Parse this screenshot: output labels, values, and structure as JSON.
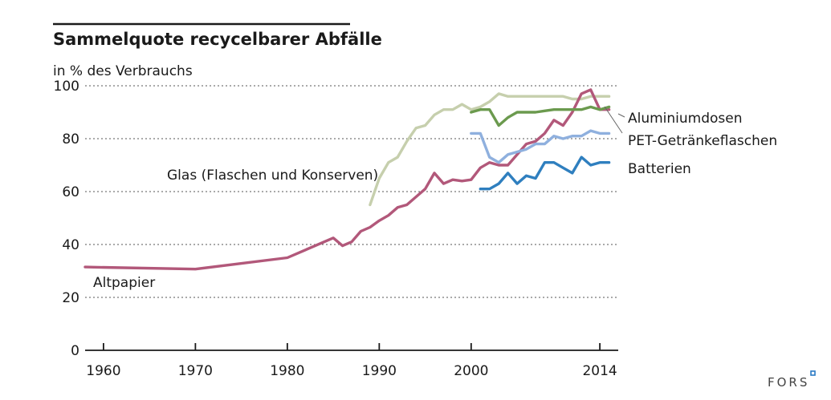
{
  "chart_data": {
    "type": "line",
    "title": "Sammelquote recycelbarer Abfälle",
    "ylabel": "in % des Verbrauchs",
    "xlabel": "",
    "xlim": [
      1958,
      2016
    ],
    "ylim": [
      0,
      100
    ],
    "x_ticks": [
      {
        "value": 1960,
        "label": "1960"
      },
      {
        "value": 1970,
        "label": "1970"
      },
      {
        "value": 1980,
        "label": "1980"
      },
      {
        "value": 1990,
        "label": "1990"
      },
      {
        "value": 2000,
        "label": "2000"
      },
      {
        "value": 2014,
        "label": "2014"
      }
    ],
    "y_ticks": [
      {
        "value": 0,
        "label": "0"
      },
      {
        "value": 20,
        "label": "20"
      },
      {
        "value": 40,
        "label": "40"
      },
      {
        "value": 60,
        "label": "60"
      },
      {
        "value": 80,
        "label": "80"
      },
      {
        "value": 100,
        "label": "100"
      }
    ],
    "grid": "horizontal dashed",
    "series": [
      {
        "name": "Glas (Flaschen und Konserven)",
        "color": "#c6cfad",
        "x": [
          1989,
          1990,
          1991,
          1992,
          1993,
          1994,
          1995,
          1996,
          1997,
          1998,
          1999,
          2000,
          2001,
          2002,
          2003,
          2004,
          2005,
          2006,
          2007,
          2008,
          2009,
          2010,
          2011,
          2012,
          2013,
          2014,
          2015
        ],
        "y": [
          55,
          65,
          71,
          73,
          79,
          84,
          85,
          89,
          91,
          91,
          93,
          91,
          92,
          94,
          97,
          96,
          96,
          96,
          96,
          96,
          96,
          96,
          95,
          95,
          96,
          96,
          96
        ]
      },
      {
        "name": "Altpapier",
        "color": "#b2587a",
        "x": [
          1958,
          1970,
          1980,
          1985,
          1986,
          1987,
          1988,
          1989,
          1990,
          1991,
          1992,
          1993,
          1994,
          1995,
          1996,
          1997,
          1998,
          1999,
          2000,
          2001,
          2002,
          2003,
          2004,
          2005,
          2006,
          2007,
          2008,
          2009,
          2010,
          2011,
          2012,
          2013,
          2014,
          2015
        ],
        "y": [
          31.5,
          30.7,
          35,
          42.5,
          39.5,
          41,
          45,
          46.5,
          49,
          51,
          54,
          55,
          58,
          61,
          67,
          63,
          64.5,
          64,
          64.5,
          69,
          71,
          70,
          70,
          74,
          78,
          79,
          82,
          87,
          85,
          90,
          97,
          98.5,
          91,
          91
        ]
      },
      {
        "name": "Aluminiumdosen",
        "color": "#6b9a4e",
        "x": [
          2000,
          2001,
          2002,
          2003,
          2004,
          2005,
          2006,
          2007,
          2008,
          2009,
          2010,
          2011,
          2012,
          2013,
          2014,
          2015
        ],
        "y": [
          90,
          91,
          91,
          85,
          88,
          90,
          90,
          90,
          90.5,
          91,
          91,
          91,
          91,
          92,
          91,
          92
        ]
      },
      {
        "name": "PET-Getränkeflaschen",
        "color": "#8fb0de",
        "x": [
          2000,
          2001,
          2002,
          2003,
          2004,
          2005,
          2006,
          2007,
          2008,
          2009,
          2010,
          2011,
          2012,
          2013,
          2014,
          2015
        ],
        "y": [
          82,
          82,
          73,
          71,
          74,
          75,
          76,
          78,
          78,
          81,
          80,
          81,
          81,
          83,
          82,
          82
        ]
      },
      {
        "name": "Batterien",
        "color": "#2f7fbf",
        "x": [
          2001,
          2002,
          2003,
          2004,
          2005,
          2006,
          2007,
          2008,
          2009,
          2010,
          2011,
          2012,
          2013,
          2014,
          2015
        ],
        "y": [
          61,
          61,
          63,
          67,
          63,
          66,
          65,
          71,
          71,
          69,
          67,
          73,
          70,
          71,
          71
        ]
      }
    ],
    "annotations": [
      {
        "text": "Glas (Flaschen und Konserven)",
        "series": "Glas (Flaschen und Konserven)"
      },
      {
        "text": "Altpapier",
        "series": "Altpapier"
      },
      {
        "text": "Aluminiumdosen",
        "series": "Aluminiumdosen"
      },
      {
        "text": "PET-Getränkeflaschen",
        "series": "PET-Getränkeflaschen"
      },
      {
        "text": "Batterien",
        "series": "Batterien"
      }
    ]
  },
  "brand": {
    "label": "FORS",
    "color": "#2a7ac4"
  }
}
